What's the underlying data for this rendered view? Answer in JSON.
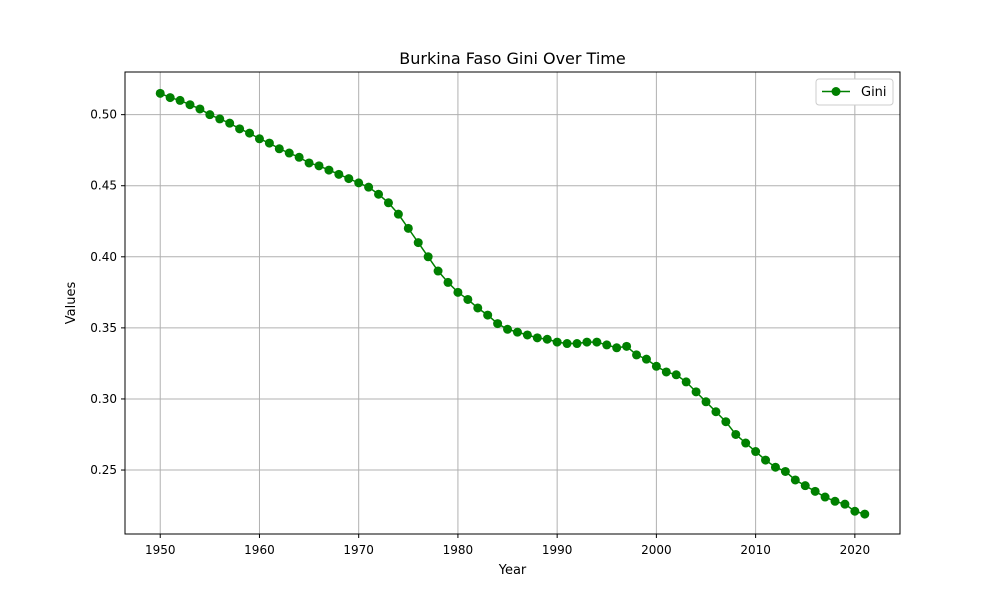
{
  "chart_data": {
    "type": "line",
    "title": "Burkina Faso Gini Over Time",
    "xlabel": "Year",
    "ylabel": "Values",
    "xlim": [
      1946.45,
      2024.55
    ],
    "ylim": [
      0.205,
      0.53
    ],
    "xticks": [
      1950,
      1960,
      1970,
      1980,
      1990,
      2000,
      2010,
      2020
    ],
    "yticks": [
      0.25,
      0.3,
      0.35,
      0.4,
      0.45,
      0.5
    ],
    "ytick_labels": [
      "0.25",
      "0.30",
      "0.35",
      "0.40",
      "0.45",
      "0.50"
    ],
    "grid": true,
    "legend": "top-right",
    "series": [
      {
        "name": "Gini",
        "color": "#008000",
        "marker": "circle",
        "x": [
          1950,
          1951,
          1952,
          1953,
          1954,
          1955,
          1956,
          1957,
          1958,
          1959,
          1960,
          1961,
          1962,
          1963,
          1964,
          1965,
          1966,
          1967,
          1968,
          1969,
          1970,
          1971,
          1972,
          1973,
          1974,
          1975,
          1976,
          1977,
          1978,
          1979,
          1980,
          1981,
          1982,
          1983,
          1984,
          1985,
          1986,
          1987,
          1988,
          1989,
          1990,
          1991,
          1992,
          1993,
          1994,
          1995,
          1996,
          1997,
          1998,
          1999,
          2000,
          2001,
          2002,
          2003,
          2004,
          2005,
          2006,
          2007,
          2008,
          2009,
          2010,
          2011,
          2012,
          2013,
          2014,
          2015,
          2016,
          2017,
          2018,
          2019,
          2020,
          2021
        ],
        "values": [
          0.515,
          0.512,
          0.51,
          0.507,
          0.504,
          0.5,
          0.497,
          0.494,
          0.49,
          0.487,
          0.483,
          0.48,
          0.476,
          0.473,
          0.47,
          0.466,
          0.464,
          0.461,
          0.458,
          0.455,
          0.452,
          0.449,
          0.444,
          0.438,
          0.43,
          0.42,
          0.41,
          0.4,
          0.39,
          0.382,
          0.375,
          0.37,
          0.364,
          0.359,
          0.353,
          0.349,
          0.347,
          0.345,
          0.343,
          0.342,
          0.34,
          0.339,
          0.339,
          0.34,
          0.34,
          0.338,
          0.336,
          0.337,
          0.331,
          0.328,
          0.323,
          0.319,
          0.317,
          0.312,
          0.305,
          0.298,
          0.291,
          0.284,
          0.275,
          0.269,
          0.263,
          0.257,
          0.252,
          0.249,
          0.243,
          0.239,
          0.235,
          0.231,
          0.228,
          0.226,
          0.221,
          0.219
        ]
      }
    ]
  }
}
